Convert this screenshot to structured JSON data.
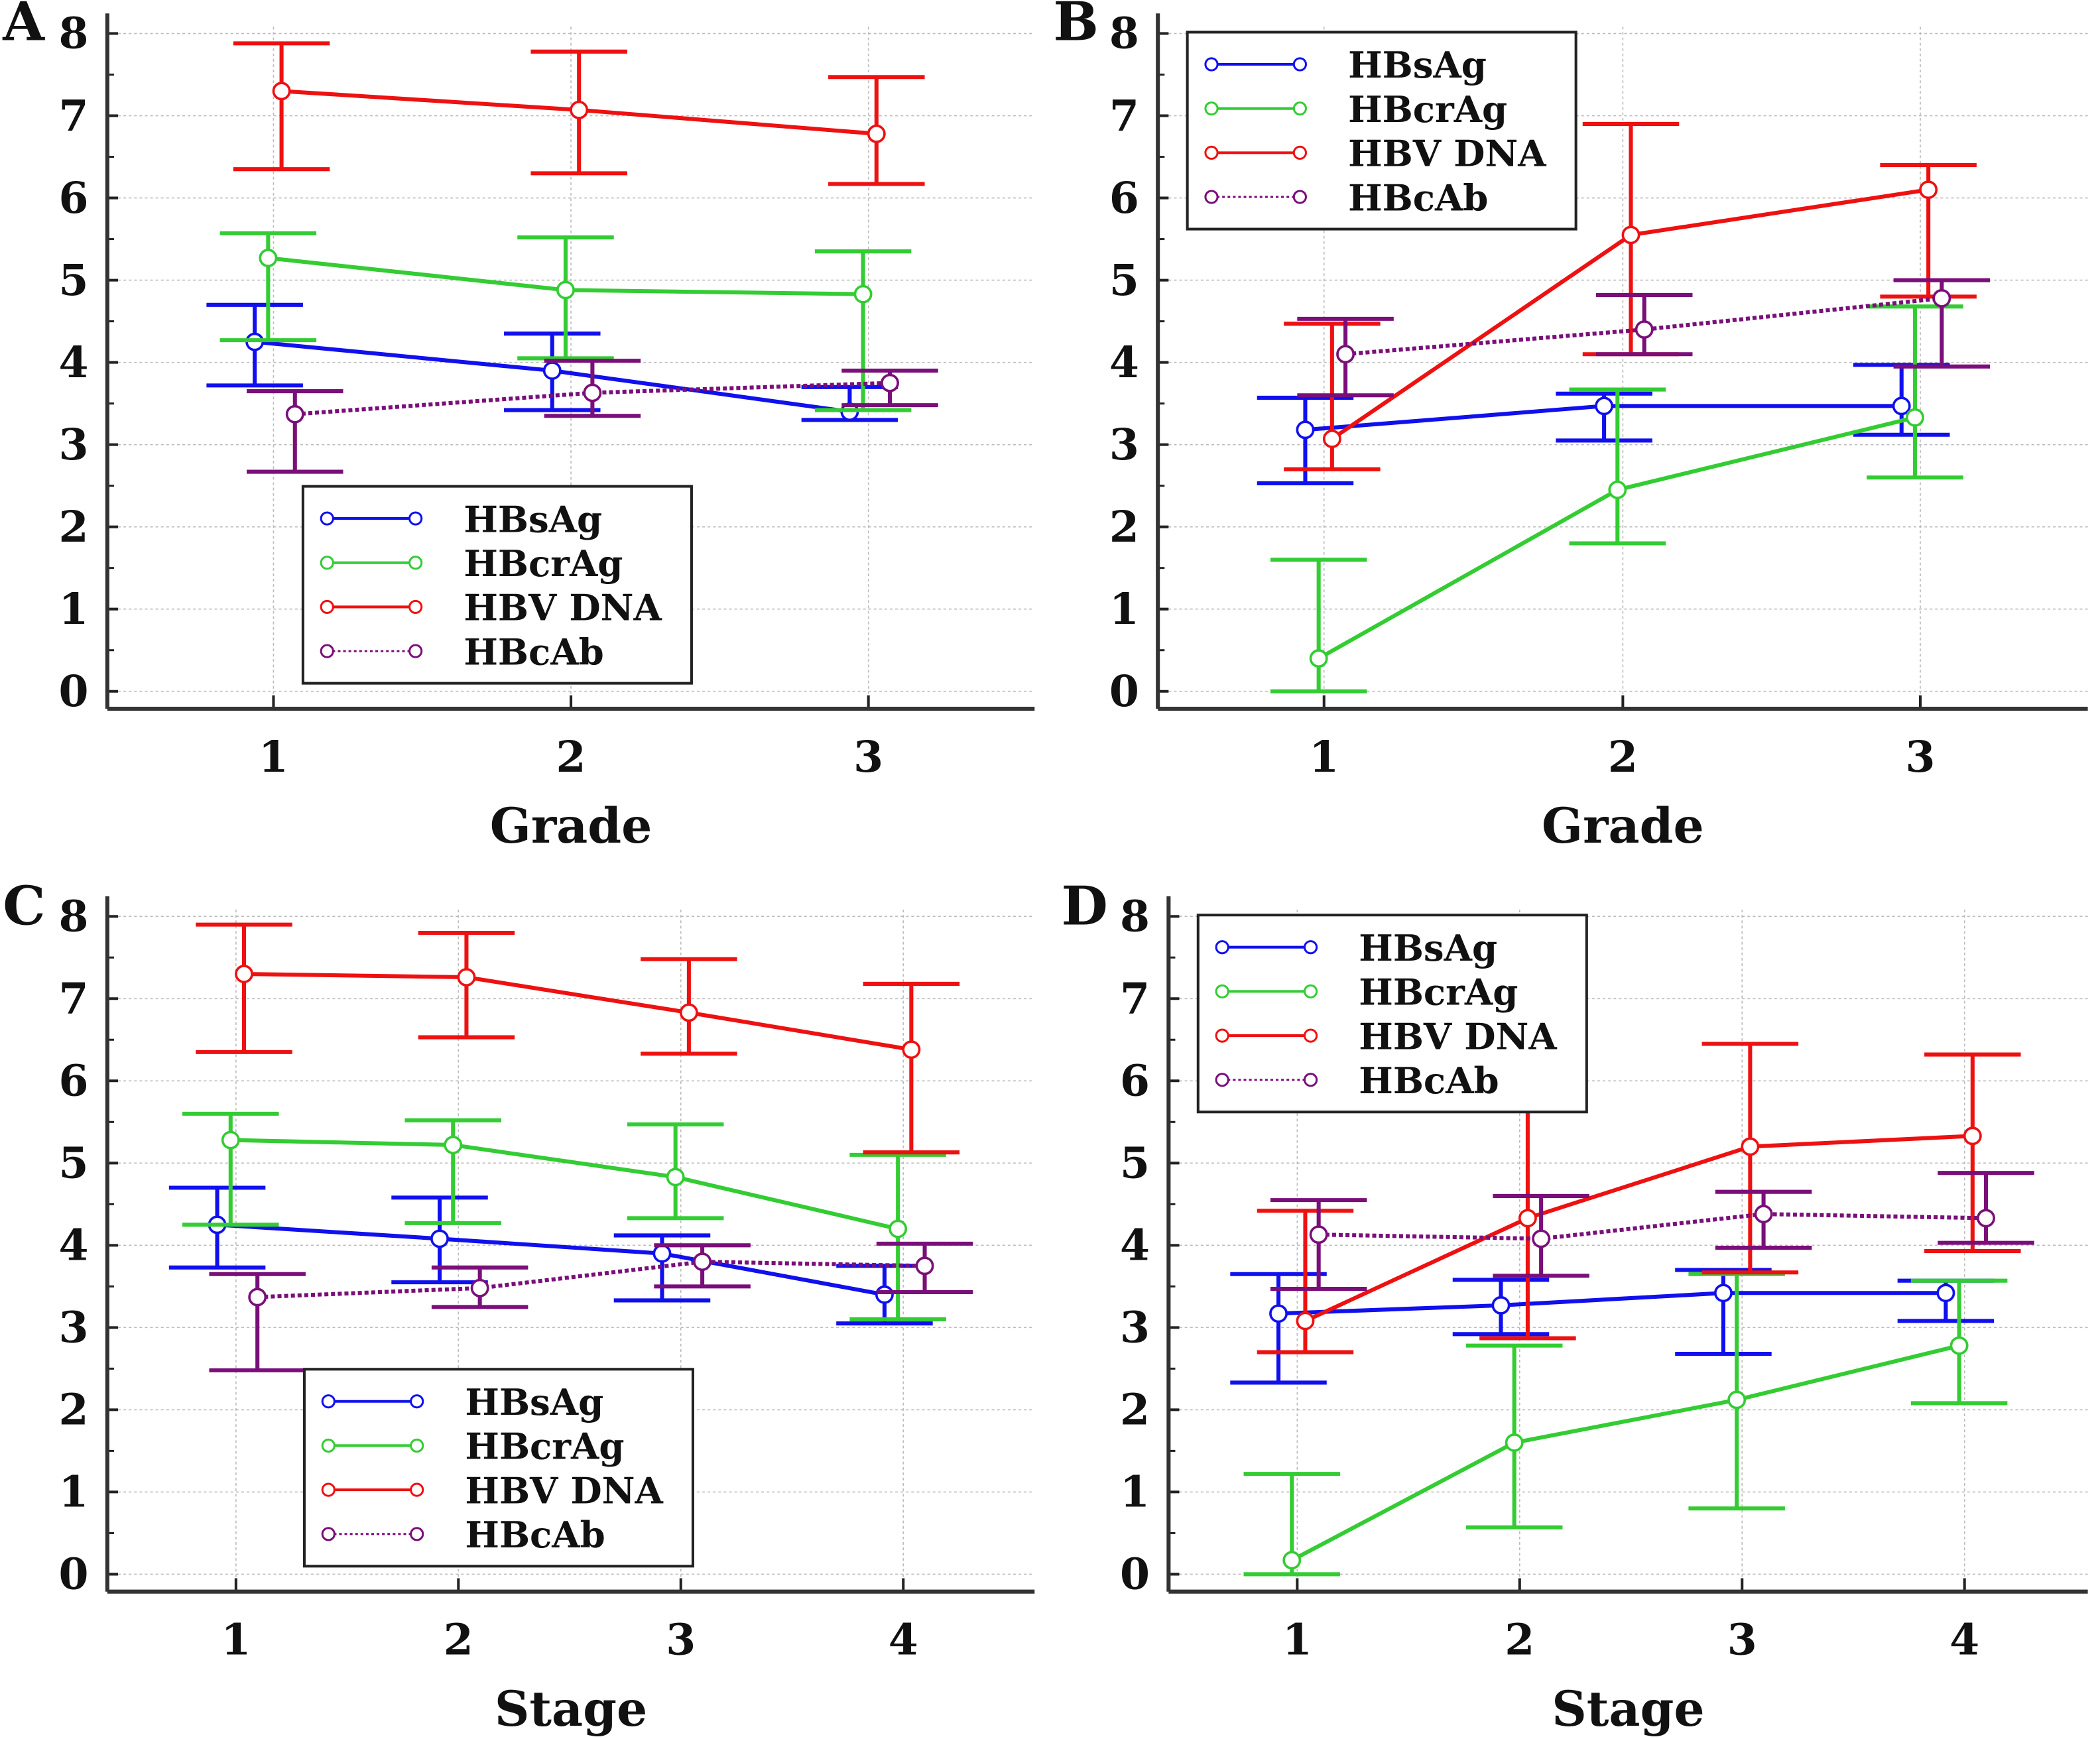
{
  "colors": {
    "HBsAg": "#1010ee",
    "HBcrAg": "#33cc33",
    "HBV DNA": "#ee1111",
    "HBcAb": "#7a0f7a"
  },
  "chart_data": [
    {
      "panel": "A",
      "type": "line",
      "xlabel": "Grade",
      "ylabel": "",
      "categories": [
        "1",
        "2",
        "3"
      ],
      "ylim": [
        0,
        8
      ],
      "yticks": [
        "0",
        "1",
        "2",
        "3",
        "4",
        "5",
        "6",
        "7",
        "8"
      ],
      "grid": true,
      "legend_position": "bottom-center",
      "series": [
        {
          "name": "HBsAg",
          "values": [
            4.25,
            3.9,
            3.4
          ],
          "err_low": [
            3.72,
            3.42,
            3.3
          ],
          "err_high": [
            4.7,
            4.35,
            3.7
          ],
          "style": "solid"
        },
        {
          "name": "HBcrAg",
          "values": [
            5.27,
            4.88,
            4.83
          ],
          "err_low": [
            4.27,
            4.05,
            3.42
          ],
          "err_high": [
            5.57,
            5.52,
            5.35
          ],
          "style": "solid"
        },
        {
          "name": "HBV DNA",
          "values": [
            7.3,
            7.07,
            6.78
          ],
          "err_low": [
            6.35,
            6.3,
            6.17
          ],
          "err_high": [
            7.88,
            7.78,
            7.47
          ],
          "style": "solid"
        },
        {
          "name": "HBcAb",
          "values": [
            3.37,
            3.63,
            3.75
          ],
          "err_low": [
            2.67,
            3.35,
            3.48
          ],
          "err_high": [
            3.65,
            4.02,
            3.9
          ],
          "style": "dotted"
        }
      ]
    },
    {
      "panel": "B",
      "type": "line",
      "xlabel": "Grade",
      "ylabel": "",
      "categories": [
        "1",
        "2",
        "3"
      ],
      "ylim": [
        0,
        8
      ],
      "yticks": [
        "0",
        "1",
        "2",
        "3",
        "4",
        "5",
        "6",
        "7",
        "8"
      ],
      "grid": true,
      "legend_position": "top-left",
      "series": [
        {
          "name": "HBsAg",
          "values": [
            3.18,
            3.47,
            3.47
          ],
          "err_low": [
            2.53,
            3.05,
            3.12
          ],
          "err_high": [
            3.57,
            3.62,
            3.97
          ],
          "style": "solid"
        },
        {
          "name": "HBcrAg",
          "values": [
            0.4,
            2.45,
            3.33
          ],
          "err_low": [
            0,
            1.8,
            2.6
          ],
          "err_high": [
            1.6,
            3.67,
            4.68
          ],
          "style": "solid"
        },
        {
          "name": "HBV DNA",
          "values": [
            3.07,
            5.55,
            6.1
          ],
          "err_low": [
            2.7,
            4.1,
            4.8
          ],
          "err_high": [
            4.47,
            6.9,
            6.4
          ],
          "style": "solid"
        },
        {
          "name": "HBcAb",
          "values": [
            4.1,
            4.4,
            4.78
          ],
          "err_low": [
            3.6,
            4.1,
            3.95
          ],
          "err_high": [
            4.53,
            4.82,
            5.0
          ],
          "style": "dotted"
        }
      ]
    },
    {
      "panel": "C",
      "type": "line",
      "xlabel": "Stage",
      "ylabel": "",
      "categories": [
        "1",
        "2",
        "3",
        "4"
      ],
      "ylim": [
        0,
        8
      ],
      "yticks": [
        "0",
        "1",
        "2",
        "3",
        "4",
        "5",
        "6",
        "7",
        "8"
      ],
      "grid": true,
      "legend_position": "bottom-center",
      "series": [
        {
          "name": "HBsAg",
          "values": [
            4.25,
            4.08,
            3.9,
            3.4
          ],
          "err_low": [
            3.73,
            3.55,
            3.33,
            3.05
          ],
          "err_high": [
            4.7,
            4.58,
            4.12,
            3.75
          ],
          "style": "solid"
        },
        {
          "name": "HBcrAg",
          "values": [
            5.28,
            5.22,
            4.83,
            4.2
          ],
          "err_low": [
            4.25,
            4.27,
            4.33,
            3.1
          ],
          "err_high": [
            5.6,
            5.52,
            5.47,
            5.1
          ],
          "style": "solid"
        },
        {
          "name": "HBV DNA",
          "values": [
            7.3,
            7.26,
            6.83,
            6.38
          ],
          "err_low": [
            6.35,
            6.53,
            6.33,
            5.13
          ],
          "err_high": [
            7.9,
            7.8,
            7.48,
            7.18
          ],
          "style": "solid"
        },
        {
          "name": "HBcAb",
          "values": [
            3.37,
            3.48,
            3.8,
            3.75
          ],
          "err_low": [
            2.48,
            3.25,
            3.5,
            3.43
          ],
          "err_high": [
            3.65,
            3.73,
            4.0,
            4.02
          ],
          "style": "dotted"
        }
      ]
    },
    {
      "panel": "D",
      "type": "line",
      "xlabel": "Stage",
      "ylabel": "",
      "categories": [
        "1",
        "2",
        "3",
        "4"
      ],
      "ylim": [
        0,
        8
      ],
      "yticks": [
        "0",
        "1",
        "2",
        "3",
        "4",
        "5",
        "6",
        "7",
        "8"
      ],
      "grid": true,
      "legend_position": "top-left",
      "series": [
        {
          "name": "HBsAg",
          "values": [
            3.17,
            3.27,
            3.42,
            3.42
          ],
          "err_low": [
            2.33,
            2.92,
            2.68,
            3.08
          ],
          "err_high": [
            3.65,
            3.58,
            3.7,
            3.57
          ],
          "style": "solid"
        },
        {
          "name": "HBcrAg",
          "values": [
            0.17,
            1.6,
            2.12,
            2.78
          ],
          "err_low": [
            0,
            0.57,
            0.8,
            2.08
          ],
          "err_high": [
            1.22,
            2.78,
            3.65,
            3.57
          ],
          "style": "solid"
        },
        {
          "name": "HBV DNA",
          "values": [
            3.08,
            4.33,
            5.2,
            5.33
          ],
          "err_low": [
            2.7,
            2.87,
            3.67,
            3.93
          ],
          "err_high": [
            4.42,
            6.18,
            6.45,
            6.32
          ],
          "style": "solid"
        },
        {
          "name": "HBcAb",
          "values": [
            4.13,
            4.08,
            4.38,
            4.33
          ],
          "err_low": [
            3.47,
            3.63,
            3.97,
            4.03
          ],
          "err_high": [
            4.55,
            4.6,
            4.65,
            4.88
          ],
          "style": "dotted"
        }
      ]
    }
  ]
}
